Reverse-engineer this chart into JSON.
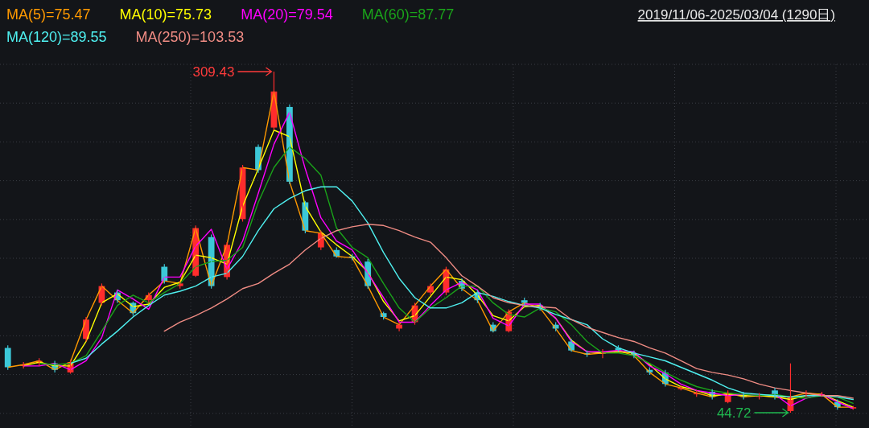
{
  "chart_data": {
    "type": "candlestick",
    "categories": [
      null,
      null,
      null,
      null,
      null,
      null,
      null,
      null,
      null,
      null,
      null,
      null,
      null,
      null,
      null,
      null,
      null,
      null,
      null,
      null,
      null,
      null,
      null,
      null,
      null,
      null,
      null,
      null,
      null,
      null,
      null,
      null,
      null,
      null,
      null,
      null,
      null,
      null,
      null,
      null,
      null,
      null,
      null,
      null,
      null,
      null,
      null,
      null,
      null,
      null,
      null,
      null,
      null,
      null,
      null
    ],
    "ohlc": [
      [
        95,
        97,
        78,
        80
      ],
      [
        81,
        84,
        79,
        82
      ],
      [
        83,
        87,
        81,
        85
      ],
      [
        83,
        85,
        76,
        78
      ],
      [
        76,
        86,
        75,
        84
      ],
      [
        102,
        119,
        100,
        117
      ],
      [
        130,
        145,
        128,
        143
      ],
      [
        138,
        140,
        130,
        132
      ],
      [
        130,
        131,
        120,
        122
      ],
      [
        132,
        138,
        130,
        136
      ],
      [
        158,
        160,
        145,
        147
      ],
      [
        143,
        147,
        141,
        145
      ],
      [
        151,
        190,
        150,
        188
      ],
      [
        181,
        183,
        141,
        143
      ],
      [
        150,
        177,
        148,
        175
      ],
      [
        195,
        237,
        193,
        235
      ],
      [
        251,
        253,
        231,
        233
      ],
      [
        266,
        309.43,
        264,
        294
      ],
      [
        282,
        284,
        222,
        224
      ],
      [
        208,
        209,
        184,
        186
      ],
      [
        173,
        186,
        171,
        184
      ],
      [
        171,
        173,
        165,
        166
      ],
      [
        166,
        168,
        163,
        165
      ],
      [
        162,
        164,
        141,
        143
      ],
      [
        122,
        123,
        117,
        119
      ],
      [
        110,
        115,
        108,
        113
      ],
      [
        115,
        130,
        113,
        128
      ],
      [
        138,
        145,
        136,
        143
      ],
      [
        138,
        158,
        136,
        156
      ],
      [
        147,
        149,
        139,
        141
      ],
      [
        138,
        140,
        130,
        132
      ],
      [
        113,
        115,
        107,
        108
      ],
      [
        108,
        125,
        107,
        123
      ],
      [
        132,
        134,
        128,
        130
      ],
      [
        128,
        130,
        124,
        126
      ],
      [
        113,
        115,
        108,
        110
      ],
      [
        100,
        102,
        92,
        93
      ],
      [
        91,
        93,
        88,
        90
      ],
      [
        91,
        94,
        87,
        91
      ],
      [
        95,
        97,
        92,
        93
      ],
      [
        91,
        93,
        87,
        89
      ],
      [
        78,
        80,
        74,
        76
      ],
      [
        76,
        78,
        65,
        67
      ],
      [
        63,
        66,
        62,
        64
      ],
      [
        59,
        62,
        57,
        60
      ],
      [
        61,
        63,
        55,
        57
      ],
      [
        53,
        62,
        52,
        60
      ],
      [
        59,
        61,
        55,
        57
      ],
      [
        57,
        60,
        55,
        58
      ],
      [
        62,
        64,
        55,
        57
      ],
      [
        46,
        83,
        44.72,
        57
      ],
      [
        59,
        62,
        57,
        60
      ],
      [
        59,
        61,
        57,
        59
      ],
      [
        53,
        55,
        47,
        49
      ],
      [
        48,
        50,
        47,
        49
      ]
    ],
    "colors": [
      "#3cc8d8",
      "#ff2d2d",
      "#ff2d2d",
      "#3cc8d8",
      "#ff2d2d",
      "#ff2d2d",
      "#ff2d2d",
      "#3cc8d8",
      "#3cc8d8",
      "#ff2d2d",
      "#3cc8d8",
      "#ff2d2d",
      "#ff2d2d",
      "#3cc8d8",
      "#ff2d2d",
      "#ff2d2d",
      "#3cc8d8",
      "#ff2d2d",
      "#3cc8d8",
      "#3cc8d8",
      "#ff2d2d",
      "#3cc8d8",
      "#3cc8d8",
      "#3cc8d8",
      "#3cc8d8",
      "#ff2d2d",
      "#ff2d2d",
      "#ff2d2d",
      "#ff2d2d",
      "#3cc8d8",
      "#3cc8d8",
      "#3cc8d8",
      "#ff2d2d",
      "#3cc8d8",
      "#3cc8d8",
      "#3cc8d8",
      "#3cc8d8",
      "#3cc8d8",
      "#ff2d2d",
      "#3cc8d8",
      "#3cc8d8",
      "#3cc8d8",
      "#3cc8d8",
      "#ff2d2d",
      "#ff2d2d",
      "#3cc8d8",
      "#ff2d2d",
      "#3cc8d8",
      "#ff2d2d",
      "#3cc8d8",
      "#ff2d2d",
      "#ff2d2d",
      "#ff2d2d",
      "#3cc8d8",
      "#ff2d2d"
    ],
    "series": [
      {
        "name": "MA(5)=75.47",
        "type": "line",
        "color": "#ff9900",
        "values": [
          80,
          82,
          85,
          78,
          84,
          117,
          143,
          132,
          122,
          136,
          147,
          145,
          188,
          143,
          175,
          235,
          233,
          294,
          224,
          186,
          184,
          166,
          165,
          143,
          119,
          113,
          128,
          143,
          156,
          141,
          132,
          108,
          123,
          130,
          126,
          110,
          93,
          90,
          91,
          93,
          89,
          76,
          67,
          64,
          60,
          57,
          60,
          57,
          58,
          57,
          57,
          60,
          59,
          49,
          49
        ]
      },
      {
        "name": "MA(10)=75.73",
        "type": "line",
        "color": "#ffff00",
        "values": [
          null,
          81,
          84,
          81,
          81,
          100,
          130,
          137,
          127,
          129,
          142,
          146,
          167,
          165,
          160,
          205,
          234,
          264,
          259,
          205,
          185,
          175,
          166,
          154,
          131,
          116,
          120,
          135,
          150,
          148,
          136,
          120,
          116,
          127,
          128,
          118,
          101,
          92,
          91,
          92,
          91,
          82,
          71,
          65,
          62,
          58,
          59,
          58,
          58,
          57,
          55,
          58,
          59,
          54,
          49
        ]
      },
      {
        "name": "MA(20)=79.54",
        "type": "line",
        "color": "#ff00ff",
        "values": [
          null,
          81,
          81,
          83,
          78,
          85,
          103,
          140,
          133,
          125,
          150,
          150,
          174,
          187,
          156,
          178,
          215,
          253,
          278,
          234,
          196,
          178,
          171,
          153,
          134,
          115,
          115,
          128,
          140,
          146,
          140,
          118,
          112,
          129,
          129,
          118,
          100,
          92,
          92,
          93,
          92,
          81,
          75,
          67,
          62,
          60,
          58,
          59,
          58,
          59,
          50,
          56,
          59,
          53,
          48
        ]
      },
      {
        "name": "MA(60)=87.77",
        "type": "line",
        "color": "#1aa31a",
        "values": [
          null,
          null,
          83,
          82,
          83,
          89,
          108,
          128,
          136,
          130,
          138,
          145,
          158,
          162,
          163,
          173,
          208,
          235,
          251,
          242,
          229,
          188,
          173,
          165,
          145,
          126,
          115,
          126,
          134,
          143,
          143,
          130,
          121,
          119,
          126,
          123,
          113,
          100,
          91,
          91,
          89,
          83,
          76,
          70,
          65,
          62,
          60,
          59,
          58,
          59,
          57,
          56,
          58,
          57,
          52
        ]
      },
      {
        "name": "MA(120)=89.55",
        "type": "line",
        "color": "#4ff0f0",
        "values": [
          null,
          null,
          null,
          null,
          83,
          87,
          98,
          108,
          119,
          128,
          136,
          139,
          143,
          150,
          153,
          166,
          186,
          203,
          211,
          217,
          220,
          220,
          209,
          192,
          169,
          149,
          134,
          126,
          126,
          130,
          138,
          135,
          131,
          128,
          126,
          121,
          117,
          113,
          102,
          95,
          91,
          88,
          85,
          80,
          75,
          70,
          64,
          60,
          59,
          58,
          57,
          58,
          58,
          57,
          55
        ]
      },
      {
        "name": "MA(250)=103.53",
        "type": "line",
        "color": "#f08c84",
        "values": [
          null,
          null,
          null,
          null,
          null,
          null,
          null,
          null,
          null,
          null,
          108,
          115,
          120,
          126,
          133,
          141,
          145,
          153,
          160,
          171,
          180,
          186,
          189,
          191,
          190,
          186,
          181,
          177,
          165,
          151,
          143,
          134,
          130,
          128,
          127,
          126,
          117,
          111,
          107,
          103,
          100,
          95,
          91,
          85,
          79,
          76,
          74,
          71,
          67,
          64,
          62,
          60,
          58,
          58,
          56
        ]
      }
    ],
    "legend": "top left",
    "grid": true,
    "annotations": [
      "2019/11/06-2025/03/04 (1290日)",
      "309.43",
      "44.72"
    ]
  }
}
